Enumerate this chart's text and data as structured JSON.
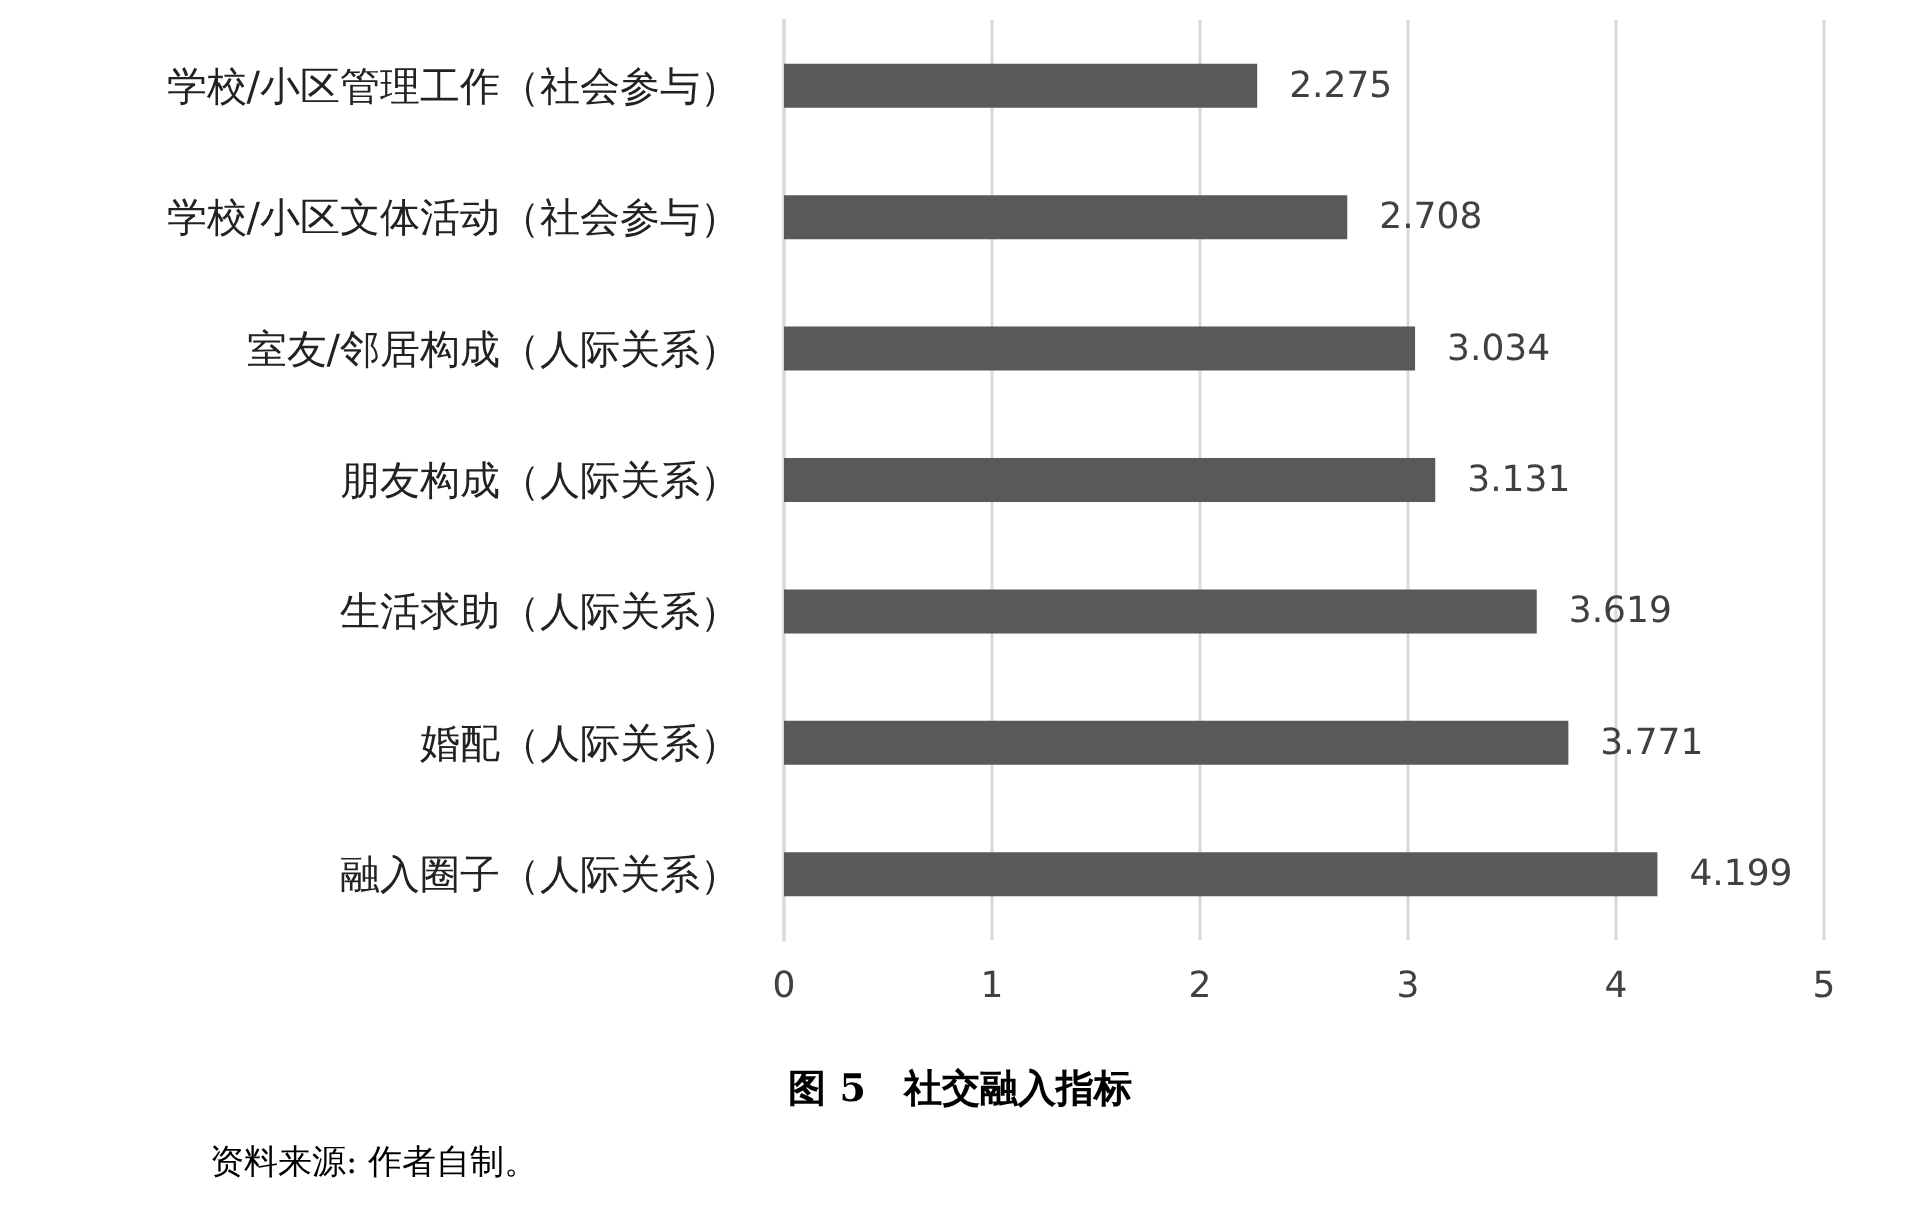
{
  "chart_data": {
    "type": "bar",
    "orientation": "horizontal",
    "title": "图 5　社交融入指标",
    "categories": [
      "学校/小区管理工作（社会参与）",
      "学校/小区文体活动（社会参与）",
      "室友/邻居构成（人际关系）",
      "朋友构成（人际关系）",
      "生活求助（人际关系）",
      "婚配（人际关系）",
      "融入圈子（人际关系）"
    ],
    "values": [
      2.275,
      2.708,
      3.034,
      3.131,
      3.619,
      3.771,
      4.199
    ],
    "color": "#595959",
    "xlim": [
      0,
      5
    ],
    "xticks": [
      0,
      1,
      2,
      3,
      4,
      5
    ],
    "grid": "x",
    "data_labels": true,
    "annotations": [
      "资料来源: 作者自制。"
    ]
  }
}
